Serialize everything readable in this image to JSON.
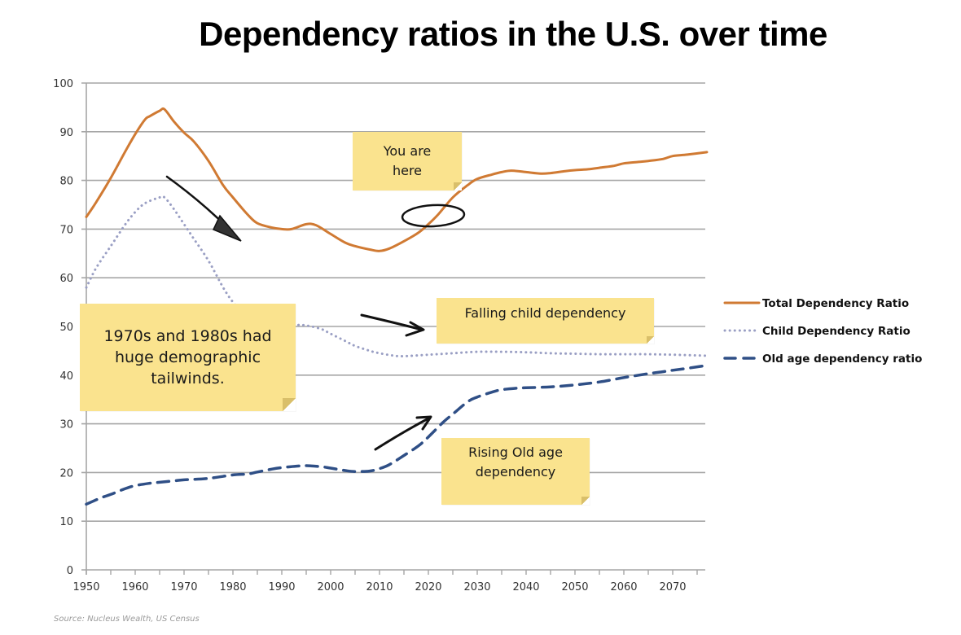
{
  "chart_data": {
    "type": "line",
    "title": "Dependency ratios in the U.S. over time",
    "xlabel": "",
    "ylabel": "",
    "xlim": [
      1950,
      2077
    ],
    "ylim": [
      0,
      100
    ],
    "x_ticks": [
      "1950",
      "1960",
      "1970",
      "1980",
      "1990",
      "2000",
      "2010",
      "2020",
      "2030",
      "2040",
      "2050",
      "2060",
      "2070"
    ],
    "y_ticks": [
      "0",
      "10",
      "20",
      "30",
      "40",
      "50",
      "60",
      "70",
      "80",
      "90",
      "100"
    ],
    "grid": "horizontal",
    "legend_position": "right",
    "series": [
      {
        "name": "Total Dependency Ratio",
        "color": "#d07a33",
        "style": "solid",
        "x": [
          1950,
          1952,
          1955,
          1958,
          1960,
          1962,
          1963,
          1965,
          1966,
          1968,
          1970,
          1972,
          1975,
          1978,
          1980,
          1983,
          1985,
          1988,
          1990,
          1992,
          1995,
          1997,
          2000,
          2003,
          2005,
          2008,
          2010,
          2012,
          2015,
          2018,
          2020,
          2022,
          2025,
          2028,
          2030,
          2033,
          2035,
          2037,
          2040,
          2043,
          2045,
          2048,
          2050,
          2053,
          2055,
          2058,
          2060,
          2063,
          2065,
          2068,
          2070,
          2073,
          2077
        ],
        "values": [
          72.5,
          75.5,
          80.5,
          86,
          89.5,
          92.5,
          93.2,
          94.3,
          94.6,
          92,
          89.8,
          88,
          84,
          79,
          76.5,
          73,
          71.2,
          70.3,
          70,
          70,
          71,
          70.8,
          69,
          67.2,
          66.5,
          65.8,
          65.5,
          66,
          67.5,
          69.3,
          71,
          73,
          76.5,
          79,
          80.3,
          81.2,
          81.7,
          82,
          81.7,
          81.4,
          81.5,
          81.9,
          82.1,
          82.3,
          82.6,
          83,
          83.5,
          83.8,
          84,
          84.4,
          85,
          85.3,
          85.8
        ]
      },
      {
        "name": "Child Dependency Ratio",
        "color": "#9a9fc4",
        "style": "dotted",
        "x": [
          1950,
          1952,
          1955,
          1958,
          1960,
          1962,
          1965,
          1966,
          1968,
          1970,
          1972,
          1975,
          1978,
          1980,
          1982,
          1985,
          1988,
          1990,
          1993,
          1995,
          1998,
          2000,
          2003,
          2005,
          2008,
          2010,
          2013,
          2015,
          2020,
          2025,
          2030,
          2035,
          2040,
          2045,
          2050,
          2055,
          2060,
          2065,
          2070,
          2077
        ],
        "values": [
          58,
          62,
          66.5,
          71,
          73.5,
          75.3,
          76.5,
          76.5,
          74,
          71,
          68,
          63.5,
          58,
          55,
          53,
          51,
          50.3,
          50.2,
          50.3,
          50.2,
          49.5,
          48.5,
          47,
          46,
          45,
          44.5,
          44,
          43.9,
          44.2,
          44.5,
          44.8,
          44.8,
          44.7,
          44.5,
          44.4,
          44.3,
          44.3,
          44.3,
          44.2,
          44
        ]
      },
      {
        "name": "Old age dependency ratio",
        "color": "#2f4f86",
        "style": "dashed",
        "x": [
          1950,
          1953,
          1955,
          1958,
          1960,
          1963,
          1965,
          1968,
          1970,
          1975,
          1980,
          1983,
          1985,
          1988,
          1990,
          1993,
          1995,
          1998,
          2000,
          2003,
          2005,
          2008,
          2010,
          2012,
          2015,
          2018,
          2020,
          2023,
          2025,
          2028,
          2030,
          2033,
          2035,
          2038,
          2040,
          2045,
          2050,
          2055,
          2060,
          2065,
          2068,
          2070,
          2073,
          2077
        ],
        "values": [
          13.5,
          14.8,
          15.5,
          16.7,
          17.3,
          17.8,
          18,
          18.3,
          18.5,
          18.8,
          19.5,
          19.7,
          20.1,
          20.7,
          21,
          21.3,
          21.4,
          21.2,
          20.9,
          20.4,
          20.2,
          20.3,
          20.8,
          21.6,
          23.5,
          25.5,
          27.3,
          30.3,
          32,
          34.5,
          35.5,
          36.5,
          37,
          37.3,
          37.4,
          37.6,
          38,
          38.6,
          39.5,
          40.3,
          40.7,
          41,
          41.4,
          42
        ]
      }
    ],
    "annotations": [
      {
        "name": "tailwinds-note",
        "text_lines": [
          "1970s and 1980s had",
          "huge demographic",
          "tailwinds."
        ]
      },
      {
        "name": "you-are-here-note",
        "text_lines": [
          "You are",
          "here"
        ]
      },
      {
        "name": "falling-child-note",
        "text_lines": [
          "Falling child dependency"
        ]
      },
      {
        "name": "rising-old-age-note",
        "text_lines": [
          "Rising Old age",
          "dependency"
        ]
      }
    ],
    "source": "Source: Nucleus Wealth, US Census"
  },
  "colors": {
    "note_background": "#fae38e",
    "gridline": "#a6a6a6",
    "arrow": "#111111"
  }
}
